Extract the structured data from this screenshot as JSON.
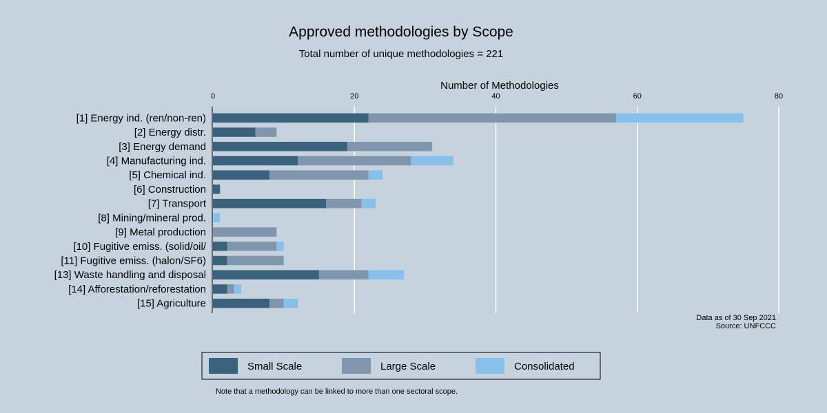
{
  "chart_data": {
    "type": "bar",
    "orientation": "horizontal",
    "stacked": true,
    "title": "Approved methodologies by Scope",
    "subtitle": "Total number of unique methodologies = 221",
    "xlabel": "Number of Methodologies",
    "xlim": [
      0,
      80
    ],
    "xticks": [
      "0",
      "20",
      "40",
      "60",
      "80"
    ],
    "x_axis_position": "top",
    "grid": true,
    "legend_position": "bottom",
    "categories": [
      "[1] Energy ind. (ren/non-ren)",
      "[2] Energy distr.",
      "[3] Energy demand",
      "[4] Manufacturing ind.",
      "[5] Chemical ind.",
      "[6] Construction",
      "[7] Transport",
      "[8] Mining/mineral prod.",
      "[9] Metal production",
      "[10] Fugitive emiss. (solid/oil/",
      "[11] Fugitive emiss. (halon/SF6)",
      "[13] Waste handling and disposal",
      "[14] Afforestation/reforestation",
      "[15] Agriculture"
    ],
    "series": [
      {
        "name": "Small Scale",
        "color": "#3b627d",
        "values": [
          22,
          6,
          19,
          12,
          8,
          1,
          16,
          0,
          0,
          2,
          2,
          15,
          2,
          8
        ]
      },
      {
        "name": "Large Scale",
        "color": "#7f96ac",
        "values": [
          35,
          3,
          12,
          16,
          14,
          0,
          5,
          0,
          9,
          7,
          8,
          7,
          1,
          2
        ]
      },
      {
        "name": "Consolidated",
        "color": "#87c0eb",
        "values": [
          18,
          0,
          0,
          6,
          2,
          0,
          2,
          1,
          0,
          1,
          0,
          5,
          1,
          2
        ]
      }
    ]
  },
  "notes": {
    "data_date": "Data as of 30 Sep 2021",
    "source": "Source: UNFCCC",
    "footnote": "Note that a methodology can be linked to more than one sectoral scope."
  }
}
